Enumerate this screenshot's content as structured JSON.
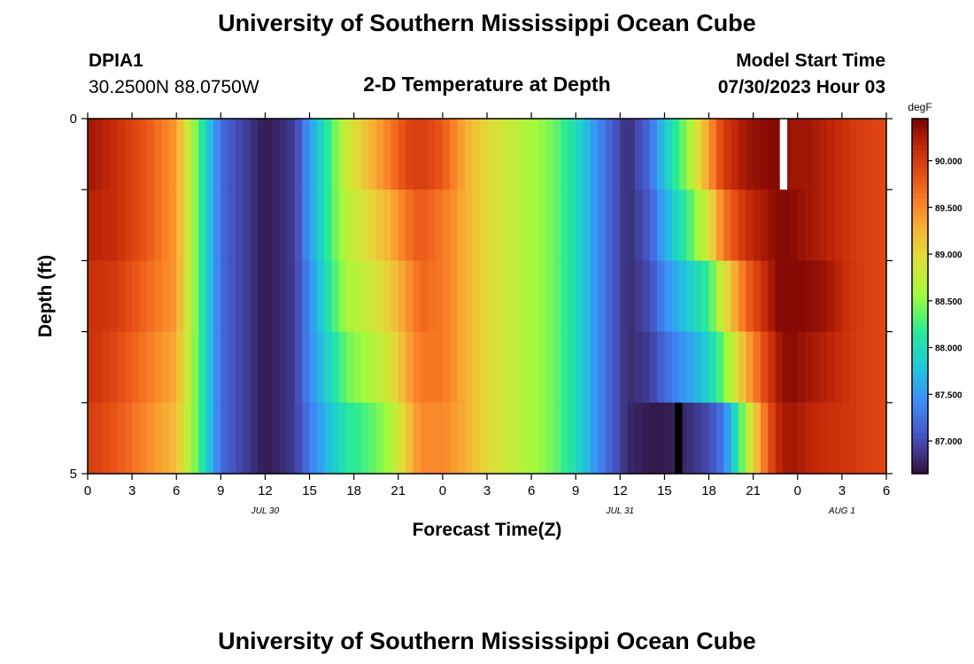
{
  "header": {
    "title_top": "University of Southern Mississippi Ocean Cube",
    "title_bottom": "University of Southern Mississippi Ocean Cube",
    "station_id": "DPIA1",
    "station_coords": "30.2500N  88.0750W",
    "plot_title": "2-D Temperature at Depth",
    "model_start_label": "Model Start Time",
    "model_start_value": "07/30/2023 Hour 03"
  },
  "chart_data": {
    "type": "heatmap",
    "title": "2-D Temperature at Depth",
    "xlabel": "Forecast Time(Z)",
    "ylabel": "Depth (ft)",
    "x_start_hour": 0,
    "x_end_hour": 54,
    "x_tick_labels": [
      "0",
      "3",
      "6",
      "9",
      "12",
      "15",
      "18",
      "21",
      "0",
      "3",
      "6",
      "9",
      "12",
      "15",
      "18",
      "21",
      "0",
      "3",
      "6"
    ],
    "date_labels": [
      {
        "text": "JUL 30",
        "hour": 12
      },
      {
        "text": "JUL 31",
        "hour": 36
      },
      {
        "text": "AUG 1",
        "hour": 51
      }
    ],
    "y_tick_labels": [
      "0",
      "5"
    ],
    "ylim": [
      0,
      5
    ],
    "depth_rows": 5,
    "colorbar": {
      "unit": "degF",
      "min": 86.65,
      "max": 90.45,
      "tick_labels": [
        "87.000",
        "87.500",
        "88.000",
        "88.500",
        "89.000",
        "89.500",
        "90.000"
      ],
      "tick_values": [
        87.0,
        87.5,
        88.0,
        88.5,
        89.0,
        89.5,
        90.0
      ]
    },
    "profile_knots_hour": [
      0,
      2,
      4,
      6,
      7.5,
      9,
      12,
      14,
      15,
      16.5,
      17.5,
      19,
      20.5,
      21.5,
      22.5,
      24,
      25.5,
      27,
      28.5,
      30,
      31.5,
      33,
      34.5,
      36.5,
      38,
      39,
      40.5,
      42,
      43,
      44.5,
      46,
      46.8,
      47.5,
      48.5,
      50,
      52,
      54
    ],
    "profiles": [
      {
        "depth": "0-1",
        "values": [
          90.3,
          90.1,
          89.8,
          89.4,
          88.3,
          87.2,
          86.7,
          86.9,
          87.5,
          88.3,
          88.8,
          89.2,
          89.6,
          89.9,
          90.0,
          89.8,
          89.3,
          89.0,
          88.8,
          88.6,
          88.4,
          88.0,
          87.4,
          86.8,
          87.2,
          87.8,
          88.5,
          89.4,
          90.0,
          90.3,
          90.4,
          90.4,
          90.3,
          90.3,
          90.2,
          90.0,
          89.9
        ]
      },
      {
        "depth": "1-2",
        "values": [
          90.2,
          90.1,
          89.8,
          89.4,
          88.3,
          87.2,
          86.7,
          86.9,
          87.5,
          88.3,
          88.7,
          89.0,
          89.3,
          89.6,
          89.8,
          89.6,
          89.3,
          89.0,
          88.8,
          88.6,
          88.4,
          88.0,
          87.4,
          86.8,
          87.1,
          87.6,
          88.2,
          88.9,
          89.6,
          90.1,
          90.3,
          90.4,
          90.4,
          90.3,
          90.2,
          90.0,
          89.9
        ]
      },
      {
        "depth": "2-3",
        "values": [
          90.1,
          90.0,
          89.7,
          89.4,
          88.3,
          87.2,
          86.7,
          86.9,
          87.4,
          88.2,
          88.6,
          88.8,
          89.1,
          89.4,
          89.7,
          89.6,
          89.3,
          89.0,
          88.8,
          88.6,
          88.4,
          88.0,
          87.4,
          86.8,
          87.0,
          87.4,
          87.8,
          88.2,
          88.9,
          89.7,
          90.2,
          90.4,
          90.4,
          90.4,
          90.3,
          90.0,
          89.9
        ]
      },
      {
        "depth": "3-4",
        "values": [
          90.1,
          89.9,
          89.6,
          89.3,
          88.3,
          87.2,
          86.7,
          86.9,
          87.4,
          88.0,
          88.4,
          88.6,
          88.9,
          89.3,
          89.6,
          89.6,
          89.3,
          89.0,
          88.8,
          88.6,
          88.4,
          88.0,
          87.4,
          86.8,
          86.9,
          87.2,
          87.5,
          87.9,
          88.4,
          89.3,
          90.0,
          90.3,
          90.4,
          90.3,
          90.2,
          90.0,
          89.9
        ]
      },
      {
        "depth": "4-5",
        "values": [
          90.0,
          89.8,
          89.5,
          89.2,
          88.3,
          87.2,
          86.7,
          86.9,
          87.3,
          87.8,
          88.1,
          88.3,
          88.6,
          89.1,
          89.5,
          89.5,
          89.3,
          89.0,
          88.8,
          88.6,
          88.4,
          88.0,
          87.4,
          86.8,
          86.7,
          86.7,
          86.8,
          87.0,
          87.3,
          88.6,
          89.8,
          90.2,
          90.3,
          90.2,
          90.1,
          90.0,
          89.9
        ]
      }
    ],
    "missing_cells": [
      {
        "depth_row": 0,
        "hour_start": 46.8,
        "hour_end": 47.3,
        "color": "#ffffff"
      },
      {
        "depth_row": 4,
        "hour_start": 39.7,
        "hour_end": 40.2,
        "color": "#000000"
      }
    ],
    "grid": false,
    "legend_position": "right"
  }
}
